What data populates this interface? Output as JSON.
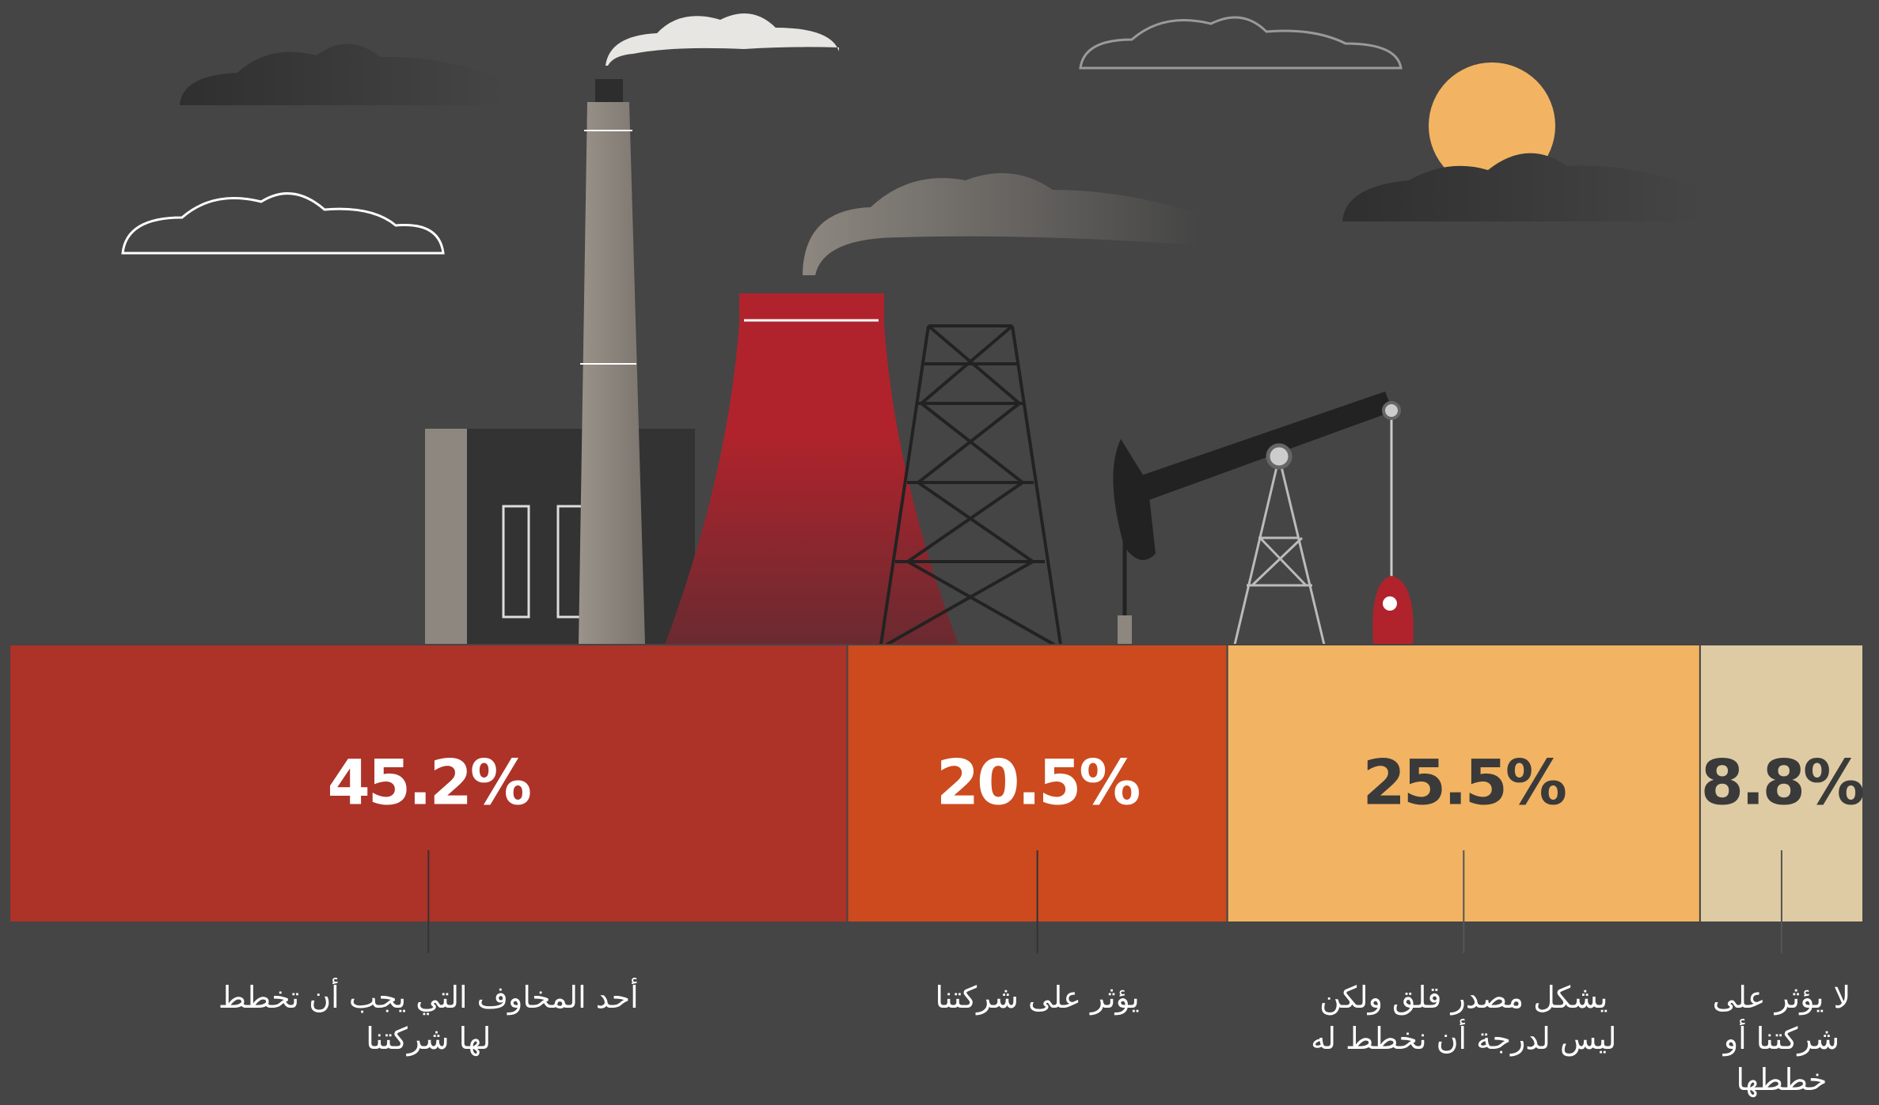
{
  "chart_data": {
    "type": "stacked-bar",
    "categories": [
      "أحد المخاوف التي يجب أن تخطط لها شركتنا",
      "يؤثر على شركتنا",
      "يشكل مصدر قلق ولكن ليس لدرجة أن نخطط له",
      "لا يؤثر على شركتنا أو خططها"
    ],
    "values": [
      45.2,
      20.5,
      25.5,
      8.8
    ],
    "value_labels": [
      "45.2%",
      "20.5%",
      "25.5%",
      "8.8%"
    ],
    "colors": [
      "#ad3228",
      "#cc4a1e",
      "#f2b462",
      "#dfcba3"
    ],
    "value_label_colors": [
      "#ffffff",
      "#ffffff",
      "#3a3a3a",
      "#3a3a3a"
    ]
  }
}
